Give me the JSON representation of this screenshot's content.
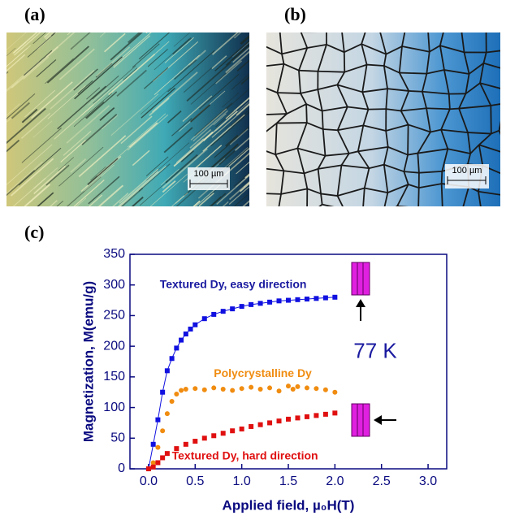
{
  "panels": [
    {
      "label": "(a)",
      "scale_bar": "100 µm"
    },
    {
      "label": "(b)",
      "scale_bar": "100 µm"
    },
    {
      "label": "(c)"
    }
  ],
  "chart_data": {
    "type": "scatter",
    "x_label": "Applied field, µ₀H(T)",
    "y_label": "Magnetization, M(emu/g)",
    "xlim": [
      -0.2,
      3.2
    ],
    "ylim": [
      0,
      350
    ],
    "xticks": [
      {
        "value": 0,
        "label": "0.0"
      },
      0.5,
      {
        "value": 1,
        "label": "1.0"
      },
      1.5,
      {
        "value": 2,
        "label": "2.0"
      },
      2.5,
      {
        "value": 3,
        "label": "3.0"
      }
    ],
    "yticks": [
      0,
      50,
      100,
      150,
      200,
      250,
      300,
      350
    ],
    "annotations": [
      {
        "text": "Textured Dy, easy direction",
        "color": "#1a1aa0",
        "x": 0.12,
        "y": 300
      },
      {
        "text": "Polycrystalline Dy",
        "color": "#f08c10",
        "x": 0.7,
        "y": 155
      },
      {
        "text": "Textured Dy, hard direction",
        "color": "#e01010",
        "x": 0.25,
        "y": 20
      },
      {
        "text": "77 K",
        "color": "#1a1aa0",
        "x": 2.2,
        "y": 190
      }
    ],
    "series": [
      {
        "name": "Textured Dy, easy direction",
        "color": "#1010e0",
        "marker": "square",
        "line": true,
        "x": [
          0,
          0.05,
          0.1,
          0.15,
          0.2,
          0.25,
          0.3,
          0.35,
          0.4,
          0.45,
          0.5,
          0.6,
          0.7,
          0.8,
          0.9,
          1.0,
          1.1,
          1.2,
          1.3,
          1.4,
          1.5,
          1.6,
          1.7,
          1.8,
          1.9,
          2.0
        ],
        "values": [
          0,
          40,
          80,
          125,
          160,
          180,
          197,
          210,
          220,
          228,
          235,
          245,
          252,
          257,
          261,
          265,
          268,
          270,
          272,
          274,
          275,
          276,
          277,
          278,
          279,
          280
        ]
      },
      {
        "name": "Polycrystalline Dy",
        "color": "#f08c10",
        "marker": "circle",
        "line": false,
        "x": [
          0,
          0.05,
          0.1,
          0.15,
          0.2,
          0.25,
          0.3,
          0.35,
          0.4,
          0.5,
          0.6,
          0.7,
          0.8,
          0.9,
          1.0,
          1.1,
          1.2,
          1.3,
          1.4,
          1.5,
          1.55,
          1.6,
          1.7,
          1.8,
          1.9,
          2.0
        ],
        "values": [
          0,
          10,
          35,
          62,
          90,
          110,
          122,
          128,
          130,
          131,
          129,
          132,
          130,
          128,
          131,
          133,
          130,
          132,
          127,
          135,
          130,
          134,
          132,
          131,
          129,
          125
        ]
      },
      {
        "name": "Textured Dy, hard direction",
        "color": "#e01010",
        "marker": "square",
        "line": false,
        "x": [
          0,
          0.05,
          0.1,
          0.15,
          0.2,
          0.3,
          0.4,
          0.5,
          0.6,
          0.7,
          0.8,
          0.9,
          1.0,
          1.1,
          1.2,
          1.3,
          1.4,
          1.5,
          1.6,
          1.7,
          1.8,
          1.9,
          2.0
        ],
        "values": [
          0,
          3,
          10,
          18,
          25,
          33,
          40,
          45,
          50,
          54,
          58,
          62,
          65,
          69,
          72,
          75,
          78,
          81,
          83,
          85,
          87,
          89,
          91
        ]
      }
    ]
  }
}
